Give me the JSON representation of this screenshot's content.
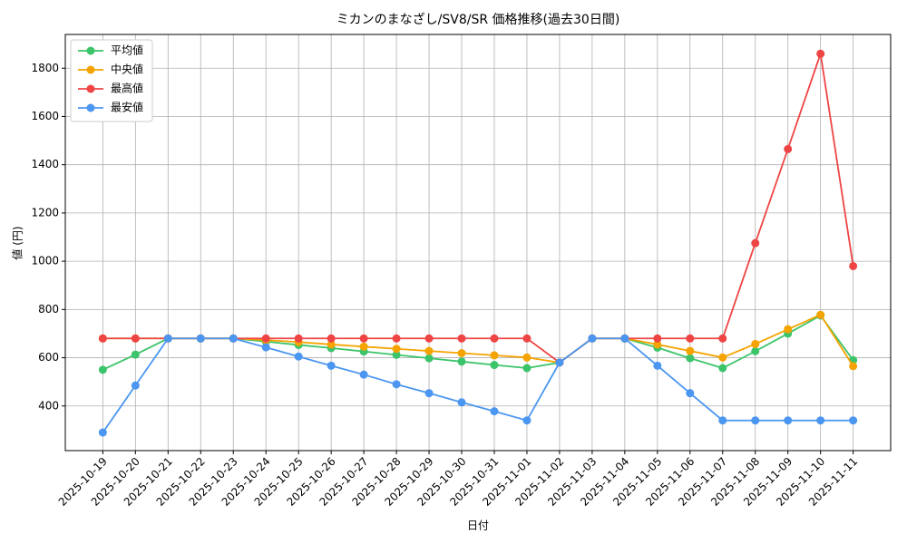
{
  "chart_data": {
    "type": "line",
    "title": "ミカンのまなざし/SV8/SR 価格推移(過去30日間)",
    "x_label": "日付",
    "y_label": "値 (円)",
    "categories": [
      "2025-10-19",
      "2025-10-20",
      "2025-10-21",
      "2025-10-22",
      "2025-10-23",
      "2025-10-24",
      "2025-10-25",
      "2025-10-26",
      "2025-10-27",
      "2025-10-28",
      "2025-10-29",
      "2025-10-30",
      "2025-10-31",
      "2025-11-01",
      "2025-11-02",
      "2025-11-03",
      "2025-11-04",
      "2025-11-05",
      "2025-11-06",
      "2025-11-07",
      "2025-11-08",
      "2025-11-09",
      "2025-11-10",
      "2025-11-11"
    ],
    "series": [
      {
        "name": "平均値",
        "color": "#3cc46a",
        "values": [
          550,
          613,
          680,
          680,
          680,
          667,
          653,
          640,
          626,
          612,
          598,
          584,
          570,
          557,
          580,
          680,
          680,
          642,
          598,
          557,
          627,
          700,
          775,
          590
        ]
      },
      {
        "name": "中央値",
        "color": "#f5a300",
        "values": [
          680,
          680,
          680,
          680,
          680,
          673,
          665,
          655,
          646,
          637,
          628,
          619,
          610,
          601,
          580,
          680,
          680,
          655,
          628,
          601,
          657,
          718,
          778,
          565
        ]
      },
      {
        "name": "最高値",
        "color": "#ef4444",
        "values": [
          680,
          680,
          680,
          680,
          680,
          680,
          680,
          680,
          680,
          680,
          680,
          680,
          680,
          680,
          580,
          680,
          680,
          680,
          680,
          680,
          1075,
          1465,
          1860,
          980
        ]
      },
      {
        "name": "最安値",
        "color": "#4b96f0",
        "values": [
          290,
          485,
          680,
          680,
          680,
          643,
          605,
          567,
          530,
          490,
          453,
          415,
          378,
          340,
          580,
          680,
          680,
          567,
          453,
          340,
          340,
          340,
          340,
          340
        ]
      }
    ],
    "ylim": [
      215,
      1940
    ],
    "yticks": [
      400,
      600,
      800,
      1000,
      1200,
      1400,
      1600,
      1800
    ],
    "grid": true,
    "legend": "upper left"
  }
}
